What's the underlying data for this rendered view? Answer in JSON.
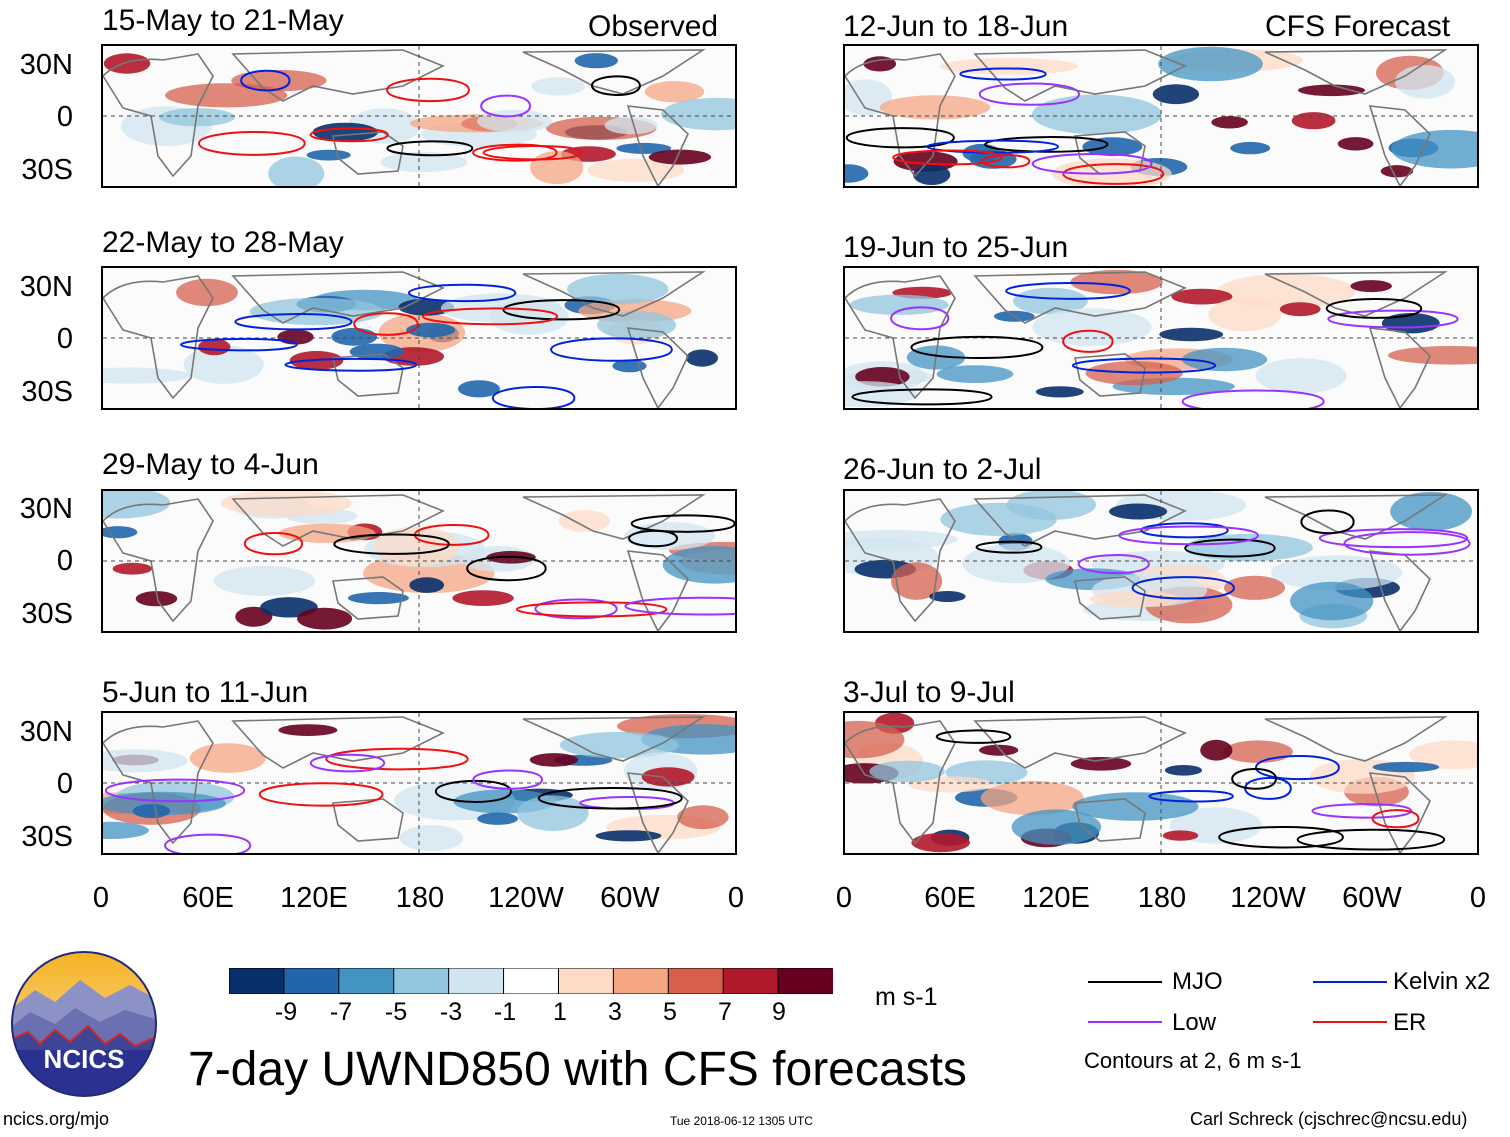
{
  "figure": {
    "title": "7-day UWND850 with CFS forecasts",
    "left_column_label": "Observed",
    "right_column_label": "CFS Forecast",
    "variable": "850-hPa zonal wind anomaly",
    "units": "m s-1"
  },
  "panels_observed": [
    {
      "period": "15-May to 21-May"
    },
    {
      "period": "22-May to 28-May"
    },
    {
      "period": "29-May to 4-Jun"
    },
    {
      "period": "5-Jun to 11-Jun"
    }
  ],
  "panels_forecast": [
    {
      "period": "12-Jun to 18-Jun"
    },
    {
      "period": "19-Jun to 25-Jun"
    },
    {
      "period": "26-Jun to 2-Jul"
    },
    {
      "period": "3-Jul to 9-Jul"
    }
  ],
  "axes": {
    "lat_ticks": [
      "30N",
      "0",
      "30S"
    ],
    "lon_ticks": [
      "0",
      "60E",
      "120E",
      "180",
      "120W",
      "60W",
      "0"
    ]
  },
  "colorbar": {
    "labels": [
      "-9",
      "-7",
      "-5",
      "-3",
      "-1",
      "1",
      "3",
      "5",
      "7",
      "9"
    ],
    "colors": [
      "#08306b",
      "#2166ac",
      "#4393c3",
      "#92c5de",
      "#d1e5f0",
      "#ffffff",
      "#fddbc7",
      "#f4a582",
      "#d6604d",
      "#b2182b",
      "#67001f"
    ],
    "units": "m s-1"
  },
  "legend": {
    "items": [
      {
        "label": "MJO",
        "color": "#000000"
      },
      {
        "label": "Kelvin x2",
        "color": "#0022dd"
      },
      {
        "label": "Low",
        "color": "#9933ff"
      },
      {
        "label": "ER",
        "color": "#ee1111"
      }
    ],
    "note": "Contours at 2, 6 m s-1"
  },
  "logo": {
    "text": "NCICS"
  },
  "footer": {
    "url": "ncics.org/mjo",
    "timestamp": "Tue 2018-06-12 1305 UTC",
    "author": "Carl Schreck (cjschrec@ncsu.edu)"
  }
}
